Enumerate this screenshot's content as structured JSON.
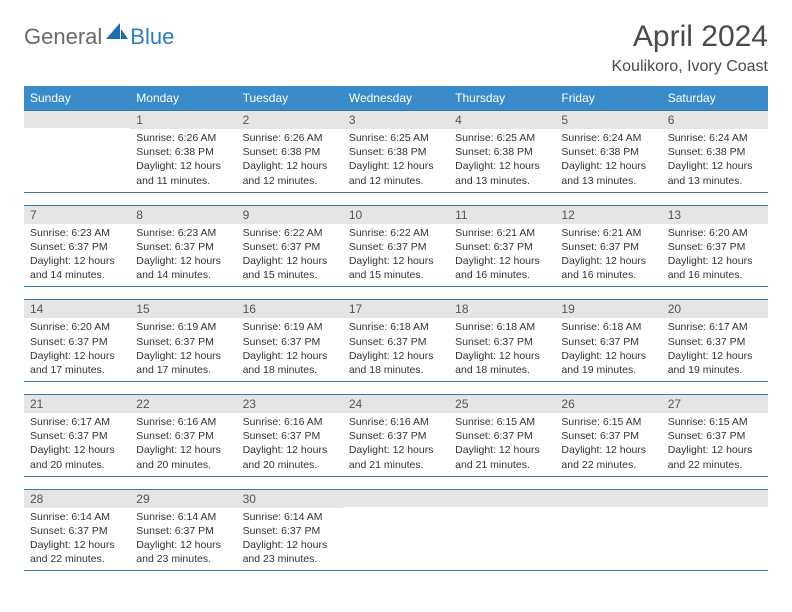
{
  "logo": {
    "general": "General",
    "blue": "Blue"
  },
  "title": "April 2024",
  "location": "Koulikoro, Ivory Coast",
  "colors": {
    "header_bg": "#3a8bc9",
    "header_text": "#ffffff",
    "daynum_bg": "#e5e5e5",
    "week_border": "#3a7aaa",
    "logo_gray": "#6a6a6a",
    "logo_blue": "#2e7cc0",
    "body_text": "#333333",
    "title_text": "#4a4a4a"
  },
  "typography": {
    "title_fontsize": 30,
    "location_fontsize": 16,
    "dow_fontsize": 12,
    "daynum_fontsize": 12,
    "info_fontsize": 10.5
  },
  "dow": [
    "Sunday",
    "Monday",
    "Tuesday",
    "Wednesday",
    "Thursday",
    "Friday",
    "Saturday"
  ],
  "weeks": [
    [
      {
        "n": "",
        "sunrise": "",
        "sunset": "",
        "daylight": ""
      },
      {
        "n": "1",
        "sunrise": "Sunrise: 6:26 AM",
        "sunset": "Sunset: 6:38 PM",
        "daylight": "Daylight: 12 hours and 11 minutes."
      },
      {
        "n": "2",
        "sunrise": "Sunrise: 6:26 AM",
        "sunset": "Sunset: 6:38 PM",
        "daylight": "Daylight: 12 hours and 12 minutes."
      },
      {
        "n": "3",
        "sunrise": "Sunrise: 6:25 AM",
        "sunset": "Sunset: 6:38 PM",
        "daylight": "Daylight: 12 hours and 12 minutes."
      },
      {
        "n": "4",
        "sunrise": "Sunrise: 6:25 AM",
        "sunset": "Sunset: 6:38 PM",
        "daylight": "Daylight: 12 hours and 13 minutes."
      },
      {
        "n": "5",
        "sunrise": "Sunrise: 6:24 AM",
        "sunset": "Sunset: 6:38 PM",
        "daylight": "Daylight: 12 hours and 13 minutes."
      },
      {
        "n": "6",
        "sunrise": "Sunrise: 6:24 AM",
        "sunset": "Sunset: 6:38 PM",
        "daylight": "Daylight: 12 hours and 13 minutes."
      }
    ],
    [
      {
        "n": "7",
        "sunrise": "Sunrise: 6:23 AM",
        "sunset": "Sunset: 6:37 PM",
        "daylight": "Daylight: 12 hours and 14 minutes."
      },
      {
        "n": "8",
        "sunrise": "Sunrise: 6:23 AM",
        "sunset": "Sunset: 6:37 PM",
        "daylight": "Daylight: 12 hours and 14 minutes."
      },
      {
        "n": "9",
        "sunrise": "Sunrise: 6:22 AM",
        "sunset": "Sunset: 6:37 PM",
        "daylight": "Daylight: 12 hours and 15 minutes."
      },
      {
        "n": "10",
        "sunrise": "Sunrise: 6:22 AM",
        "sunset": "Sunset: 6:37 PM",
        "daylight": "Daylight: 12 hours and 15 minutes."
      },
      {
        "n": "11",
        "sunrise": "Sunrise: 6:21 AM",
        "sunset": "Sunset: 6:37 PM",
        "daylight": "Daylight: 12 hours and 16 minutes."
      },
      {
        "n": "12",
        "sunrise": "Sunrise: 6:21 AM",
        "sunset": "Sunset: 6:37 PM",
        "daylight": "Daylight: 12 hours and 16 minutes."
      },
      {
        "n": "13",
        "sunrise": "Sunrise: 6:20 AM",
        "sunset": "Sunset: 6:37 PM",
        "daylight": "Daylight: 12 hours and 16 minutes."
      }
    ],
    [
      {
        "n": "14",
        "sunrise": "Sunrise: 6:20 AM",
        "sunset": "Sunset: 6:37 PM",
        "daylight": "Daylight: 12 hours and 17 minutes."
      },
      {
        "n": "15",
        "sunrise": "Sunrise: 6:19 AM",
        "sunset": "Sunset: 6:37 PM",
        "daylight": "Daylight: 12 hours and 17 minutes."
      },
      {
        "n": "16",
        "sunrise": "Sunrise: 6:19 AM",
        "sunset": "Sunset: 6:37 PM",
        "daylight": "Daylight: 12 hours and 18 minutes."
      },
      {
        "n": "17",
        "sunrise": "Sunrise: 6:18 AM",
        "sunset": "Sunset: 6:37 PM",
        "daylight": "Daylight: 12 hours and 18 minutes."
      },
      {
        "n": "18",
        "sunrise": "Sunrise: 6:18 AM",
        "sunset": "Sunset: 6:37 PM",
        "daylight": "Daylight: 12 hours and 18 minutes."
      },
      {
        "n": "19",
        "sunrise": "Sunrise: 6:18 AM",
        "sunset": "Sunset: 6:37 PM",
        "daylight": "Daylight: 12 hours and 19 minutes."
      },
      {
        "n": "20",
        "sunrise": "Sunrise: 6:17 AM",
        "sunset": "Sunset: 6:37 PM",
        "daylight": "Daylight: 12 hours and 19 minutes."
      }
    ],
    [
      {
        "n": "21",
        "sunrise": "Sunrise: 6:17 AM",
        "sunset": "Sunset: 6:37 PM",
        "daylight": "Daylight: 12 hours and 20 minutes."
      },
      {
        "n": "22",
        "sunrise": "Sunrise: 6:16 AM",
        "sunset": "Sunset: 6:37 PM",
        "daylight": "Daylight: 12 hours and 20 minutes."
      },
      {
        "n": "23",
        "sunrise": "Sunrise: 6:16 AM",
        "sunset": "Sunset: 6:37 PM",
        "daylight": "Daylight: 12 hours and 20 minutes."
      },
      {
        "n": "24",
        "sunrise": "Sunrise: 6:16 AM",
        "sunset": "Sunset: 6:37 PM",
        "daylight": "Daylight: 12 hours and 21 minutes."
      },
      {
        "n": "25",
        "sunrise": "Sunrise: 6:15 AM",
        "sunset": "Sunset: 6:37 PM",
        "daylight": "Daylight: 12 hours and 21 minutes."
      },
      {
        "n": "26",
        "sunrise": "Sunrise: 6:15 AM",
        "sunset": "Sunset: 6:37 PM",
        "daylight": "Daylight: 12 hours and 22 minutes."
      },
      {
        "n": "27",
        "sunrise": "Sunrise: 6:15 AM",
        "sunset": "Sunset: 6:37 PM",
        "daylight": "Daylight: 12 hours and 22 minutes."
      }
    ],
    [
      {
        "n": "28",
        "sunrise": "Sunrise: 6:14 AM",
        "sunset": "Sunset: 6:37 PM",
        "daylight": "Daylight: 12 hours and 22 minutes."
      },
      {
        "n": "29",
        "sunrise": "Sunrise: 6:14 AM",
        "sunset": "Sunset: 6:37 PM",
        "daylight": "Daylight: 12 hours and 23 minutes."
      },
      {
        "n": "30",
        "sunrise": "Sunrise: 6:14 AM",
        "sunset": "Sunset: 6:37 PM",
        "daylight": "Daylight: 12 hours and 23 minutes."
      },
      {
        "n": "",
        "sunrise": "",
        "sunset": "",
        "daylight": ""
      },
      {
        "n": "",
        "sunrise": "",
        "sunset": "",
        "daylight": ""
      },
      {
        "n": "",
        "sunrise": "",
        "sunset": "",
        "daylight": ""
      },
      {
        "n": "",
        "sunrise": "",
        "sunset": "",
        "daylight": ""
      }
    ]
  ]
}
